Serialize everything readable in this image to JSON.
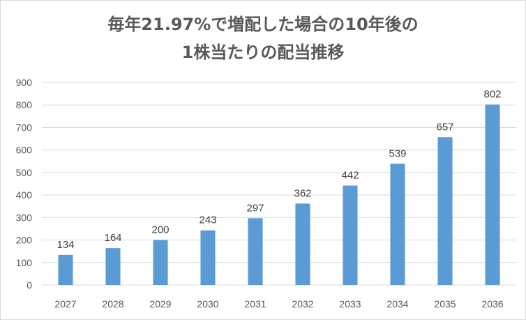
{
  "chart_data": {
    "type": "bar",
    "title_lines": [
      "毎年21.97%で増配した場合の10年後の",
      "1株当たりの配当推移"
    ],
    "categories": [
      "2027",
      "2028",
      "2029",
      "2030",
      "2031",
      "2032",
      "2033",
      "2034",
      "2035",
      "2036"
    ],
    "series": [
      {
        "values": [
          134,
          164,
          200,
          243,
          297,
          362,
          442,
          539,
          657,
          802
        ]
      }
    ],
    "data_labels": [
      "134",
      "164",
      "200",
      "243",
      "297",
      "362",
      "442",
      "539",
      "657",
      "802"
    ],
    "y_ticks": [
      "0",
      "100",
      "200",
      "300",
      "400",
      "500",
      "600",
      "700",
      "800",
      "900"
    ],
    "ylim": [
      0,
      900
    ],
    "grid": true,
    "legend": "none",
    "bar_color": "#5b9bd5",
    "grid_color": "#d9d9d9"
  }
}
